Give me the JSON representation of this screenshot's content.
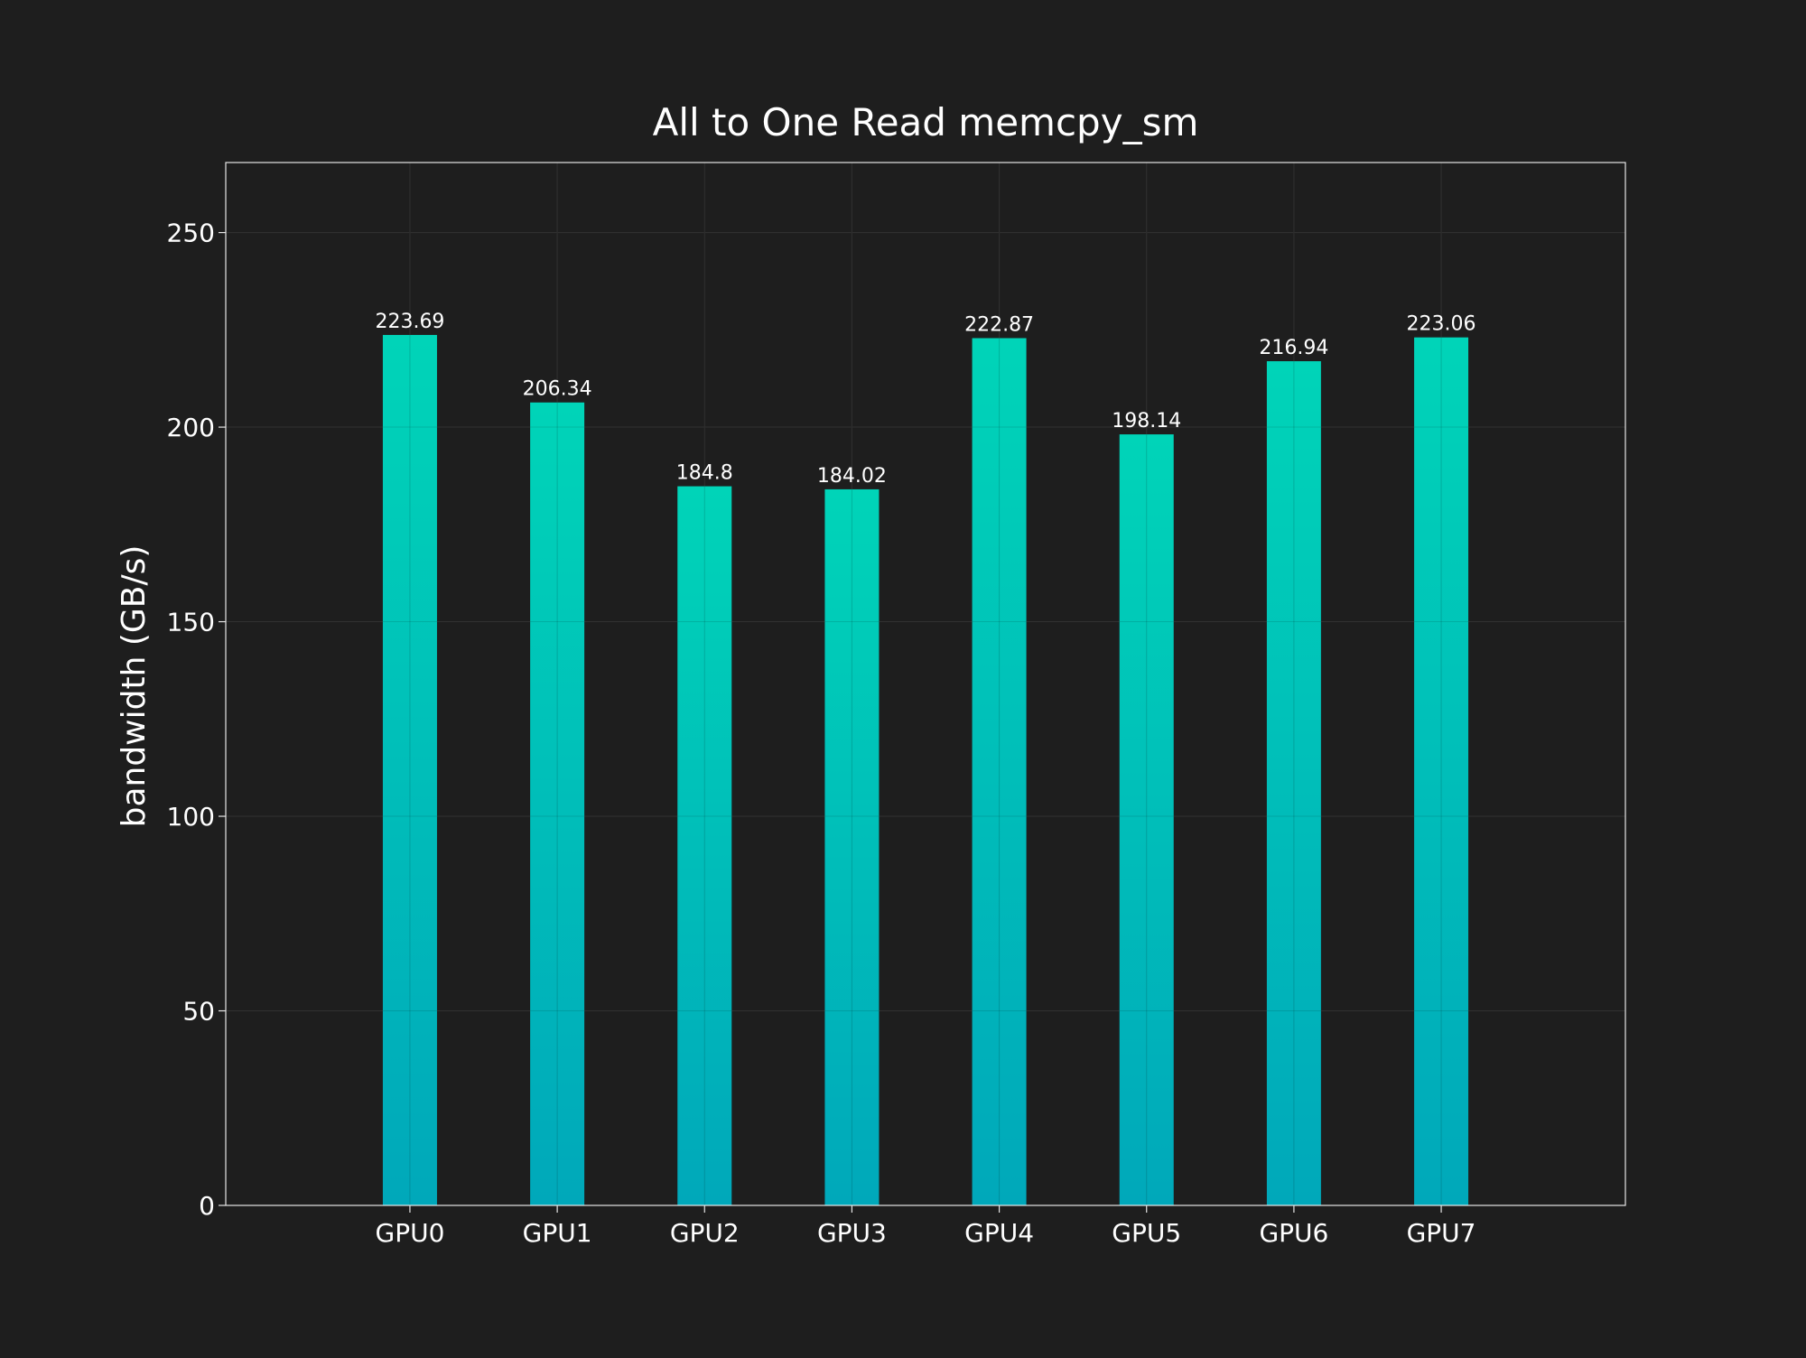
{
  "chart_data": {
    "type": "bar",
    "title": "All to One Read memcpy_sm",
    "xlabel": "",
    "ylabel": "bandwidth (GB/s)",
    "categories": [
      "GPU0",
      "GPU1",
      "GPU2",
      "GPU3",
      "GPU4",
      "GPU5",
      "GPU6",
      "GPU7"
    ],
    "values": [
      223.69,
      206.34,
      184.8,
      184.02,
      222.87,
      198.14,
      216.94,
      223.06
    ],
    "data_labels": [
      "223.69",
      "206.34",
      "184.8",
      "184.02",
      "222.87",
      "198.14",
      "216.94",
      "223.06"
    ],
    "ylim": [
      0,
      268
    ],
    "yticks": [
      0,
      50,
      100,
      150,
      200,
      250
    ],
    "grid": true,
    "legend": "none",
    "colors": {
      "background": "#1e1e1e",
      "bar_top": "#00d4b8",
      "bar_bottom": "#00a8ba",
      "text": "#ffffff",
      "grid": "#3a3a3a",
      "frame": "#e6e6e6"
    }
  }
}
